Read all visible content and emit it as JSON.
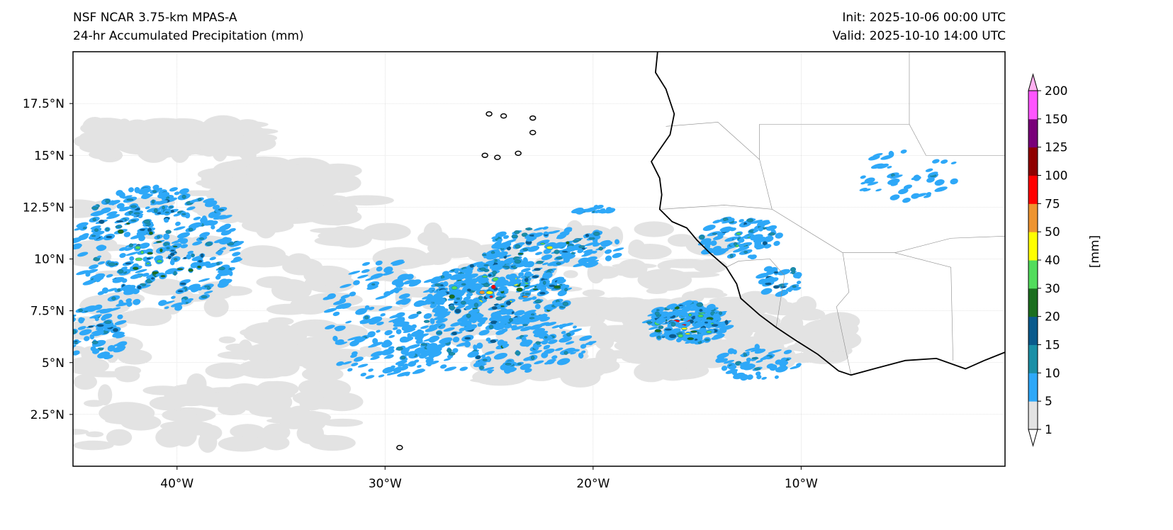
{
  "header": {
    "model": "NSF NCAR 3.75-km MPAS-A",
    "field": "24-hr Accumulated Precipitation (mm)",
    "init": "Init: 2025-10-06 00:00 UTC",
    "valid": "Valid: 2025-10-10 14:00 UTC"
  },
  "map": {
    "extent": {
      "lon": [
        -45,
        -0.2
      ],
      "lat": [
        0,
        20
      ]
    },
    "lon_ticks": [
      {
        "value": -40,
        "label": "40°W"
      },
      {
        "value": -30,
        "label": "30°W"
      },
      {
        "value": -20,
        "label": "20°W"
      },
      {
        "value": -10,
        "label": "10°W"
      }
    ],
    "lat_ticks": [
      {
        "value": 2.5,
        "label": "2.5°N"
      },
      {
        "value": 5,
        "label": "5°N"
      },
      {
        "value": 7.5,
        "label": "7.5°N"
      },
      {
        "value": 10,
        "label": "10°N"
      },
      {
        "value": 12.5,
        "label": "12.5°N"
      },
      {
        "value": 15,
        "label": "15°N"
      },
      {
        "value": 17.5,
        "label": "17.5°N"
      }
    ]
  },
  "colorbar": {
    "label": "[mm]",
    "levels": [
      "1",
      "5",
      "10",
      "15",
      "20",
      "30",
      "40",
      "50",
      "75",
      "100",
      "125",
      "150",
      "200"
    ],
    "colors": [
      "#e3e3e3",
      "#2ea8f8",
      "#1b8fa6",
      "#0a5a8c",
      "#1b6e1f",
      "#52dc5c",
      "#ffff00",
      "#ee9430",
      "#ff0000",
      "#8f0000",
      "#790079",
      "#ff55ff"
    ],
    "under_color": "#ffffff",
    "over_color": "#ffb0f0"
  }
}
